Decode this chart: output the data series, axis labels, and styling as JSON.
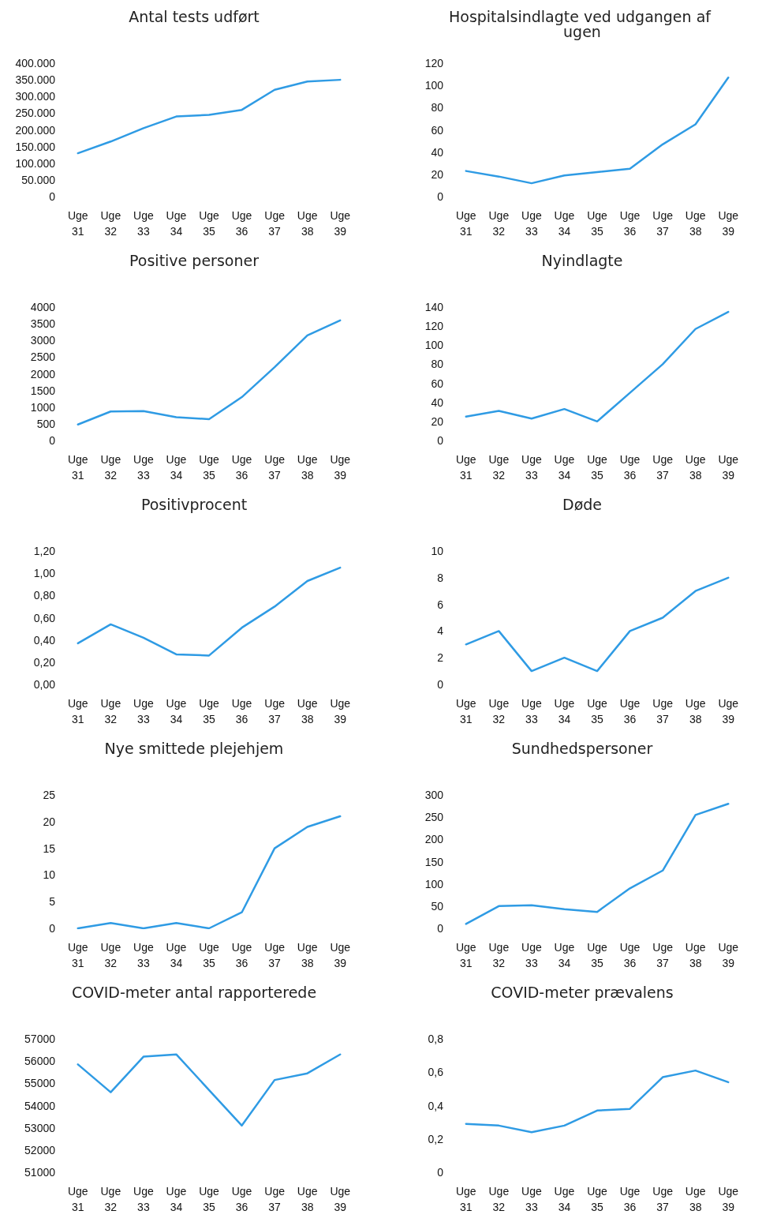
{
  "chart_data": [
    {
      "type": "line",
      "title": "Antal tests udført",
      "categories": [
        "Uge 31",
        "Uge 32",
        "Uge 33",
        "Uge 34",
        "Uge 35",
        "Uge 36",
        "Uge 37",
        "Uge 38",
        "Uge 39"
      ],
      "color": "#2f9be4",
      "values": [
        130000,
        165000,
        205000,
        240000,
        245000,
        260000,
        320000,
        345000,
        350000
      ],
      "ylim": [
        0,
        400000
      ],
      "yticks": [
        0,
        {
          "value": 50000,
          "label": "50.000"
        },
        {
          "value": 100000,
          "label": "100.000"
        },
        {
          "value": 150000,
          "label": "150.000"
        },
        {
          "value": 200000,
          "label": "200.000"
        },
        {
          "value": 250000,
          "label": "250.000"
        },
        {
          "value": 300000,
          "label": "300.000"
        },
        {
          "value": 350000,
          "label": "350.000"
        },
        {
          "value": 400000,
          "label": "400.000"
        }
      ]
    },
    {
      "type": "line",
      "title": "Hospitalsindlagte ved udgangen af ugen",
      "categories": [
        "Uge 31",
        "Uge 32",
        "Uge 33",
        "Uge 34",
        "Uge 35",
        "Uge 36",
        "Uge 37",
        "Uge 38",
        "Uge 39"
      ],
      "color": "#2f9be4",
      "values": [
        23,
        18,
        12,
        19,
        22,
        25,
        47,
        65,
        107
      ],
      "ylim": [
        0,
        120
      ],
      "yticks": [
        0,
        20,
        40,
        60,
        80,
        100,
        120
      ]
    },
    {
      "type": "line",
      "title": "Positive personer",
      "categories": [
        "Uge 31",
        "Uge 32",
        "Uge 33",
        "Uge 34",
        "Uge 35",
        "Uge 36",
        "Uge 37",
        "Uge 38",
        "Uge 39"
      ],
      "color": "#2f9be4",
      "values": [
        480,
        870,
        880,
        700,
        640,
        1300,
        2200,
        3150,
        3600
      ],
      "ylim": [
        0,
        4000
      ],
      "yticks": [
        0,
        500,
        1000,
        1500,
        2000,
        2500,
        3000,
        3500,
        4000
      ]
    },
    {
      "type": "line",
      "title": "Nyindlagte",
      "categories": [
        "Uge 31",
        "Uge 32",
        "Uge 33",
        "Uge 34",
        "Uge 35",
        "Uge 36",
        "Uge 37",
        "Uge 38",
        "Uge 39"
      ],
      "color": "#2f9be4",
      "values": [
        25,
        31,
        23,
        33,
        20,
        50,
        80,
        117,
        135
      ],
      "ylim": [
        0,
        140
      ],
      "yticks": [
        0,
        20,
        40,
        60,
        80,
        100,
        120,
        140
      ]
    },
    {
      "type": "line",
      "title": "Positivprocent",
      "categories": [
        "Uge 31",
        "Uge 32",
        "Uge 33",
        "Uge 34",
        "Uge 35",
        "Uge 36",
        "Uge 37",
        "Uge 38",
        "Uge 39"
      ],
      "color": "#2f9be4",
      "values": [
        0.37,
        0.54,
        0.42,
        0.27,
        0.26,
        0.51,
        0.7,
        0.93,
        1.05
      ],
      "ylim": [
        0,
        1.2
      ],
      "yticks": [
        {
          "value": 0,
          "label": "0,00"
        },
        {
          "value": 0.2,
          "label": "0,20"
        },
        {
          "value": 0.4,
          "label": "0,40"
        },
        {
          "value": 0.6,
          "label": "0,60"
        },
        {
          "value": 0.8,
          "label": "0,80"
        },
        {
          "value": 1,
          "label": "1,00"
        },
        {
          "value": 1.2,
          "label": "1,20"
        }
      ]
    },
    {
      "type": "line",
      "title": "Døde",
      "categories": [
        "Uge 31",
        "Uge 32",
        "Uge 33",
        "Uge 34",
        "Uge 35",
        "Uge 36",
        "Uge 37",
        "Uge 38",
        "Uge 39"
      ],
      "color": "#2f9be4",
      "values": [
        3,
        4,
        1,
        2,
        1,
        4,
        5,
        7,
        8
      ],
      "ylim": [
        0,
        10
      ],
      "yticks": [
        0,
        2,
        4,
        6,
        8,
        10
      ]
    },
    {
      "type": "line",
      "title": "Nye smittede plejehjem",
      "categories": [
        "Uge 31",
        "Uge 32",
        "Uge 33",
        "Uge 34",
        "Uge 35",
        "Uge 36",
        "Uge 37",
        "Uge 38",
        "Uge 39"
      ],
      "color": "#2f9be4",
      "values": [
        0,
        1,
        0,
        1,
        0,
        3,
        15,
        19,
        21
      ],
      "ylim": [
        0,
        25
      ],
      "yticks": [
        0,
        5,
        10,
        15,
        20,
        25
      ]
    },
    {
      "type": "line",
      "title": "Sundhedspersoner",
      "categories": [
        "Uge 31",
        "Uge 32",
        "Uge 33",
        "Uge 34",
        "Uge 35",
        "Uge 36",
        "Uge 37",
        "Uge 38",
        "Uge 39"
      ],
      "color": "#2f9be4",
      "values": [
        10,
        50,
        52,
        43,
        37,
        90,
        130,
        255,
        280
      ],
      "ylim": [
        0,
        300
      ],
      "yticks": [
        0,
        50,
        100,
        150,
        200,
        250,
        300
      ]
    },
    {
      "type": "line",
      "title": "COVID-meter antal rapporterede",
      "categories": [
        "Uge 31",
        "Uge 32",
        "Uge 33",
        "Uge 34",
        "Uge 35",
        "Uge 36",
        "Uge 37",
        "Uge 38",
        "Uge 39"
      ],
      "color": "#2f9be4",
      "values": [
        55850,
        54600,
        56200,
        56300,
        54700,
        53100,
        55150,
        55450,
        56300
      ],
      "ylim": [
        51000,
        57000
      ],
      "yticks": [
        51000,
        52000,
        53000,
        54000,
        55000,
        56000,
        57000
      ]
    },
    {
      "type": "line",
      "title": "COVID-meter prævalens",
      "categories": [
        "Uge 31",
        "Uge 32",
        "Uge 33",
        "Uge 34",
        "Uge 35",
        "Uge 36",
        "Uge 37",
        "Uge 38",
        "Uge 39"
      ],
      "color": "#2f9be4",
      "values": [
        0.29,
        0.28,
        0.24,
        0.28,
        0.37,
        0.38,
        0.57,
        0.61,
        0.54
      ],
      "ylim": [
        0,
        0.8
      ],
      "yticks": [
        0,
        {
          "value": 0.2,
          "label": "0,2"
        },
        {
          "value": 0.4,
          "label": "0,4"
        },
        {
          "value": 0.6,
          "label": "0,6"
        },
        {
          "value": 0.8,
          "label": "0,8"
        }
      ]
    }
  ]
}
